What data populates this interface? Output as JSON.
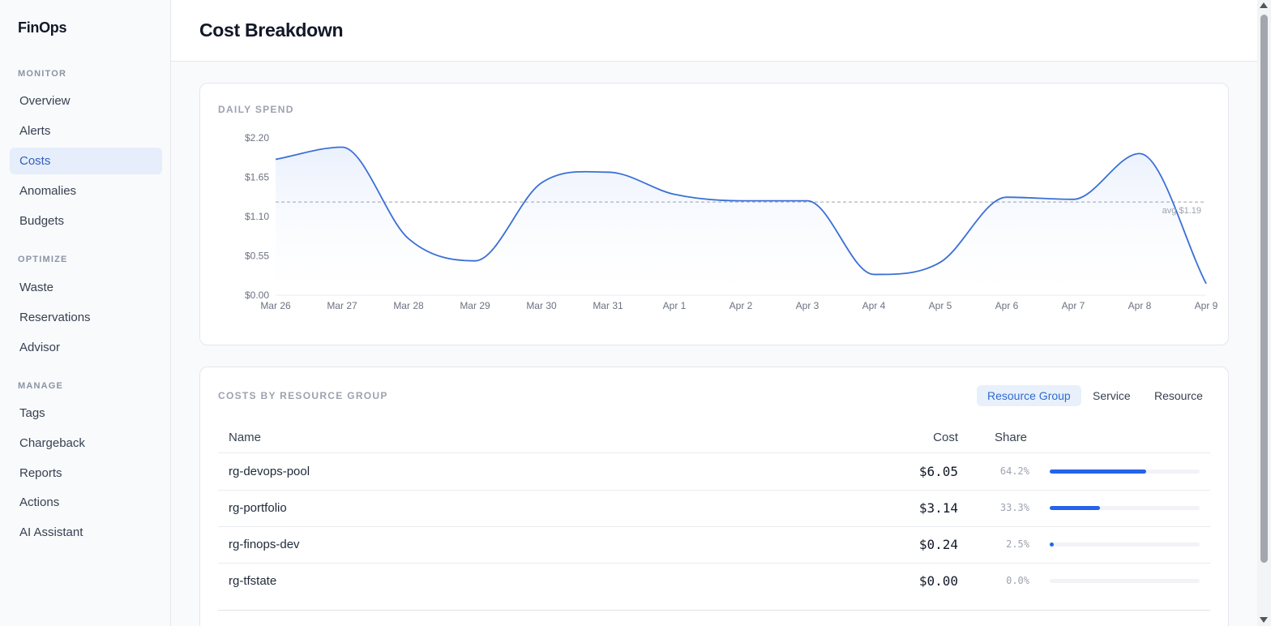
{
  "sidebar": {
    "brand": "FinOps",
    "sections": [
      {
        "label": "MONITOR",
        "items": [
          "Overview",
          "Alerts",
          "Costs",
          "Anomalies",
          "Budgets"
        ]
      },
      {
        "label": "OPTIMIZE",
        "items": [
          "Waste",
          "Reservations",
          "Advisor"
        ]
      },
      {
        "label": "MANAGE",
        "items": [
          "Tags",
          "Chargeback",
          "Reports",
          "Actions",
          "AI Assistant"
        ]
      }
    ],
    "active_item": "Costs"
  },
  "header": {
    "title": "Cost Breakdown"
  },
  "daily_spend": {
    "title": "DAILY SPEND",
    "avg_label": "avg $1.19"
  },
  "chart_data": {
    "type": "area",
    "title": "",
    "categories": [
      "Mar 26",
      "Mar 27",
      "Mar 28",
      "Mar 29",
      "Mar 30",
      "Mar 31",
      "Apr 1",
      "Apr 2",
      "Apr 3",
      "Apr 4",
      "Apr 5",
      "Apr 6",
      "Apr 7",
      "Apr 8",
      "Apr 9"
    ],
    "series": [
      {
        "values": [
          1.9,
          2.07,
          0.79,
          0.48,
          1.57,
          1.72,
          1.41,
          1.32,
          1.32,
          0.29,
          0.46,
          1.37,
          1.34,
          1.98,
          0.16
        ]
      }
    ],
    "y_ticks": [
      "$0.00",
      "$0.55",
      "$1.10",
      "$1.65",
      "$2.20"
    ],
    "ylim": [
      0,
      2.2
    ],
    "average": 1.19,
    "grid": false,
    "legend": "none",
    "colors": {
      "line": "#3b6fd6",
      "fill": "#eef3fd",
      "avg_line": "#9ca3af"
    }
  },
  "costs_table": {
    "title": "COSTS BY RESOURCE GROUP",
    "tabs": [
      "Resource Group",
      "Service",
      "Resource"
    ],
    "active_tab": "Resource Group",
    "columns": {
      "name": "Name",
      "cost": "Cost",
      "share": "Share"
    },
    "rows": [
      {
        "name": "rg-devops-pool",
        "cost": "$6.05",
        "share": "64.2%",
        "share_value": 0.642
      },
      {
        "name": "rg-portfolio",
        "cost": "$3.14",
        "share": "33.3%",
        "share_value": 0.333
      },
      {
        "name": "rg-finops-dev",
        "cost": "$0.24",
        "share": "2.5%",
        "share_value": 0.025
      },
      {
        "name": "rg-tfstate",
        "cost": "$0.00",
        "share": "0.0%",
        "share_value": 0.0
      }
    ]
  },
  "colors": {
    "accent": "#2563eb",
    "active_nav_bg": "#e6eefb"
  }
}
